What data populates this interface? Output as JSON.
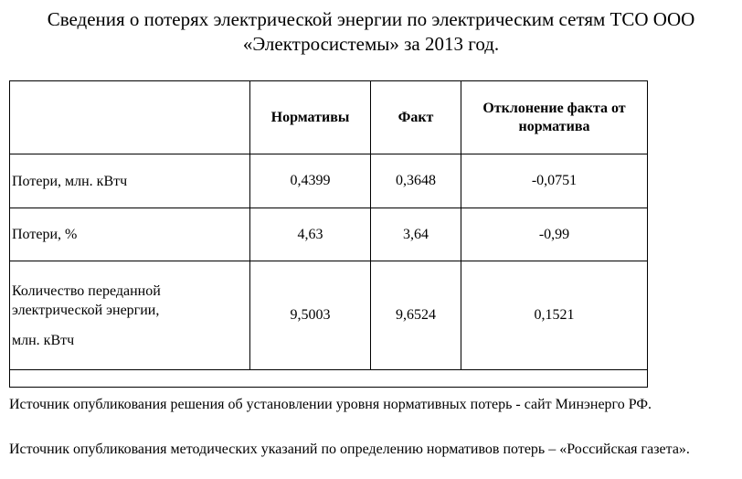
{
  "title": {
    "line1": "Сведения о потерях электрической энергии по электрическим сетям ТСО ООО",
    "line2": "«Электросистемы» за 2013 год."
  },
  "table": {
    "headers": {
      "empty": "",
      "norm": "Нормативы",
      "fact": "Факт",
      "deviation": "Отклонение факта от норматива"
    },
    "rows": [
      {
        "label": "Потери, млн. кВтч",
        "norm": "0,4399",
        "fact": "0,3648",
        "deviation": "-0,0751"
      },
      {
        "label": "Потери, %",
        "norm": "4,63",
        "fact": "3,64",
        "deviation": "-0,99"
      },
      {
        "label_line1": "Количество переданной",
        "label_line2": "электрической энергии,",
        "label_line3": "млн. кВтч",
        "norm": "9,5003",
        "fact": "9,6524",
        "deviation": "0,1521"
      }
    ]
  },
  "notes": {
    "source_decision": "Источник опубликования решения об установлении уровня нормативных потерь - сайт Минэнерго РФ.",
    "source_methodology": "Источник опубликования методических указаний по определению нормативов потерь – «Российская газета»."
  }
}
